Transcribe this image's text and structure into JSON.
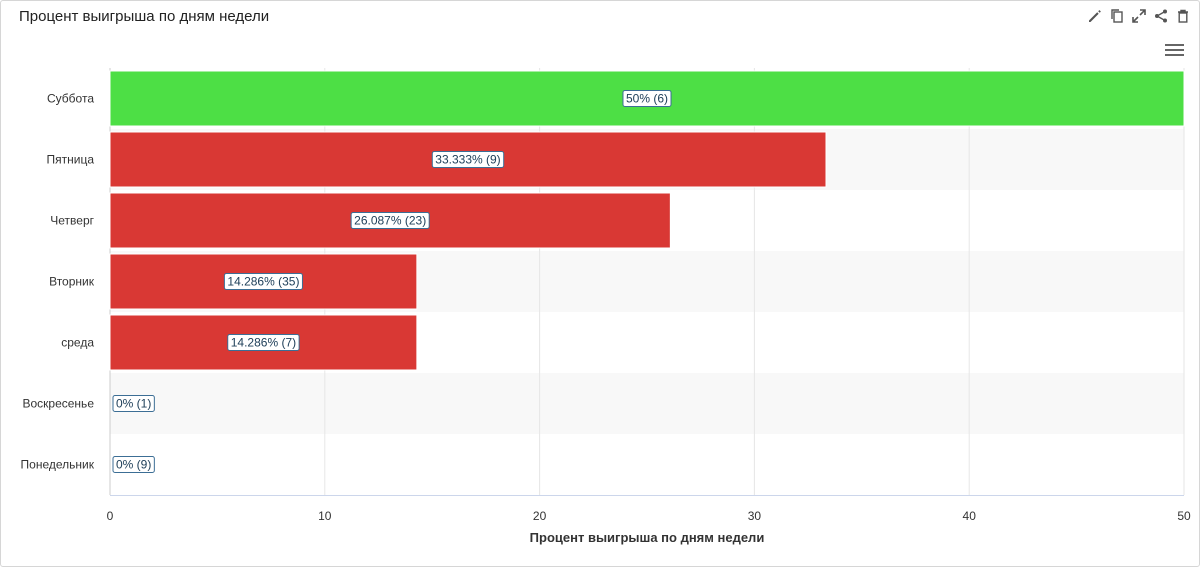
{
  "panel": {
    "title": "Процент выигрыша по дням недели",
    "toolbar_icons": [
      "pencil-icon",
      "copy-icon",
      "expand-icon",
      "share-icon",
      "trash-icon"
    ],
    "menu_icon": "hamburger-menu-icon"
  },
  "chart_data": {
    "type": "bar",
    "orientation": "horizontal",
    "categories": [
      "Суббота",
      "Пятница",
      "Четверг",
      "Вторник",
      "среда",
      "Воскресенье",
      "Понедельник"
    ],
    "values": [
      50,
      33.333,
      26.087,
      14.286,
      14.286,
      0,
      0
    ],
    "data_labels": [
      "50% (6)",
      "33.333% (9)",
      "26.087% (23)",
      "14.286% (35)",
      "14.286% (7)",
      "0% (1)",
      "0% (9)"
    ],
    "bar_colors": [
      "#4ddf45",
      "#d93834",
      "#d93834",
      "#d93834",
      "#d93834",
      "#d93834",
      "#d93834"
    ],
    "xlabel": "Процент выигрыша по дням недели",
    "xlim": [
      0,
      50
    ],
    "xticks": [
      0,
      10,
      20,
      30,
      40,
      50
    ],
    "grid": true,
    "legend": "none"
  }
}
